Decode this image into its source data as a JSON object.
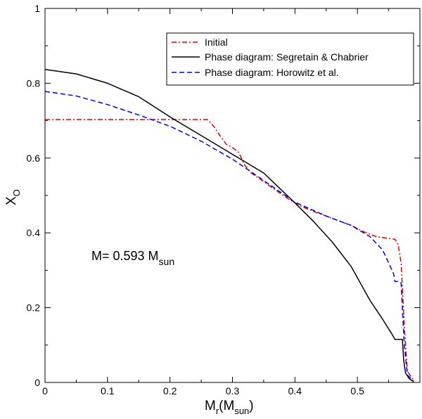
{
  "chart_data": {
    "type": "line",
    "title": "",
    "xlabel": {
      "main": "M",
      "sub1": "r",
      "mid": "(M",
      "sub2": "sun",
      "end": ")"
    },
    "ylabel": {
      "main": "X",
      "sub": "O"
    },
    "xlim": [
      0,
      0.6
    ],
    "ylim": [
      0,
      1
    ],
    "xticks": [
      0,
      0.1,
      0.2,
      0.3,
      0.4,
      0.5
    ],
    "xtick_labels": [
      "0",
      "0.1",
      "0.2",
      "0.3",
      "0.4",
      "0.5"
    ],
    "yticks": [
      0,
      0.2,
      0.4,
      0.6,
      0.8,
      1
    ],
    "ytick_labels": [
      "0",
      "0.2",
      "0.4",
      "0.6",
      "0.8",
      "1"
    ],
    "grid": false,
    "legend_position": "top-right",
    "annotation": {
      "main": "M= 0.593 M",
      "sub": "sun"
    },
    "series": [
      {
        "name": "Initial",
        "color": "#e00000",
        "dash": "dashdot",
        "points": [
          [
            0,
            0.703
          ],
          [
            0.05,
            0.703
          ],
          [
            0.1,
            0.703
          ],
          [
            0.15,
            0.703
          ],
          [
            0.2,
            0.703
          ],
          [
            0.24,
            0.703
          ],
          [
            0.26,
            0.703
          ],
          [
            0.27,
            0.685
          ],
          [
            0.28,
            0.66
          ],
          [
            0.29,
            0.637
          ],
          [
            0.3,
            0.628
          ],
          [
            0.31,
            0.615
          ],
          [
            0.32,
            0.58
          ],
          [
            0.33,
            0.56
          ],
          [
            0.35,
            0.537
          ],
          [
            0.37,
            0.513
          ],
          [
            0.39,
            0.49
          ],
          [
            0.41,
            0.471
          ],
          [
            0.43,
            0.457
          ],
          [
            0.45,
            0.445
          ],
          [
            0.47,
            0.432
          ],
          [
            0.49,
            0.42
          ],
          [
            0.51,
            0.403
          ],
          [
            0.53,
            0.39
          ],
          [
            0.55,
            0.385
          ],
          [
            0.56,
            0.383
          ],
          [
            0.565,
            0.37
          ],
          [
            0.57,
            0.32
          ],
          [
            0.575,
            0.15
          ],
          [
            0.58,
            0.03
          ],
          [
            0.59,
            0.005
          ]
        ]
      },
      {
        "name": "Phase diagram: Segretain & Chabrier",
        "color": "#000000",
        "dash": "solid",
        "points": [
          [
            0,
            0.837
          ],
          [
            0.05,
            0.825
          ],
          [
            0.1,
            0.8
          ],
          [
            0.15,
            0.764
          ],
          [
            0.2,
            0.71
          ],
          [
            0.25,
            0.66
          ],
          [
            0.3,
            0.61
          ],
          [
            0.35,
            0.56
          ],
          [
            0.4,
            0.48
          ],
          [
            0.43,
            0.43
          ],
          [
            0.46,
            0.375
          ],
          [
            0.49,
            0.31
          ],
          [
            0.52,
            0.22
          ],
          [
            0.54,
            0.17
          ],
          [
            0.555,
            0.13
          ],
          [
            0.56,
            0.115
          ],
          [
            0.565,
            0.115
          ],
          [
            0.572,
            0.115
          ],
          [
            0.574,
            0.06
          ],
          [
            0.577,
            0.025
          ],
          [
            0.583,
            0.01
          ],
          [
            0.59,
            0.002
          ]
        ]
      },
      {
        "name": "Phase diagram: Horowitz et al.",
        "color": "#0000ff",
        "dash": "dashed",
        "points": [
          [
            0,
            0.778
          ],
          [
            0.05,
            0.766
          ],
          [
            0.1,
            0.743
          ],
          [
            0.15,
            0.715
          ],
          [
            0.2,
            0.685
          ],
          [
            0.25,
            0.645
          ],
          [
            0.3,
            0.597
          ],
          [
            0.35,
            0.54
          ],
          [
            0.4,
            0.482
          ],
          [
            0.45,
            0.445
          ],
          [
            0.49,
            0.42
          ],
          [
            0.52,
            0.39
          ],
          [
            0.54,
            0.355
          ],
          [
            0.55,
            0.32
          ],
          [
            0.558,
            0.29
          ],
          [
            0.56,
            0.27
          ],
          [
            0.567,
            0.27
          ],
          [
            0.57,
            0.265
          ],
          [
            0.575,
            0.1
          ],
          [
            0.58,
            0.02
          ],
          [
            0.59,
            0.004
          ]
        ]
      }
    ]
  }
}
